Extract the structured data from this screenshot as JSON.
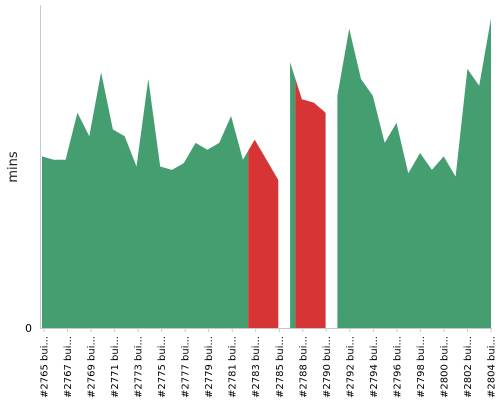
{
  "chart_data": {
    "type": "area",
    "ylabel": "mins",
    "y_tick_labels": [
      "0"
    ],
    "ylim": [
      0,
      9.6
    ],
    "x_tick_labels": [
      "#2765 bui...",
      "#2767 bui...",
      "#2769 bui...",
      "#2771 bui...",
      "#2773 bui...",
      "#2775 bui...",
      "#2777 bui...",
      "#2779 bui...",
      "#2781 bui...",
      "#2783 bui...",
      "#2785 bui...",
      "#2788 bui...",
      "#2790 bui...",
      "#2792 bui...",
      "#2794 bui...",
      "#2796 bui...",
      "#2798 bui...",
      "#2800 bui...",
      "#2802 bui...",
      "#2804 bui..."
    ],
    "series": [
      {
        "values": [
          5.1,
          5.0,
          5.0,
          6.4,
          5.7,
          7.6,
          5.9,
          5.7,
          4.8,
          7.4,
          4.8,
          4.7,
          4.9,
          5.5,
          5.3,
          5.5,
          6.3,
          5.0,
          5.6,
          5.0,
          4.4,
          7.9,
          6.8,
          6.7,
          6.4,
          6.9,
          8.9,
          7.4,
          6.9,
          5.5,
          6.1,
          4.6,
          5.2,
          4.7,
          5.1,
          4.5,
          7.7,
          7.2,
          9.2
        ],
        "status": [
          "ok",
          "ok",
          "ok",
          "ok",
          "ok",
          "ok",
          "ok",
          "ok",
          "ok",
          "ok",
          "ok",
          "ok",
          "ok",
          "ok",
          "ok",
          "ok",
          "ok",
          "ok",
          "fail",
          "fail",
          "fail",
          "ok",
          "fail",
          "fail",
          "fail",
          "ok",
          "ok",
          "ok",
          "ok",
          "ok",
          "ok",
          "ok",
          "ok",
          "ok",
          "ok",
          "ok",
          "ok",
          "ok",
          "ok"
        ]
      }
    ],
    "colors": {
      "ok": "#459e6f",
      "fail": "#d73535",
      "axis": "#c8c8c8"
    },
    "grid": false
  }
}
